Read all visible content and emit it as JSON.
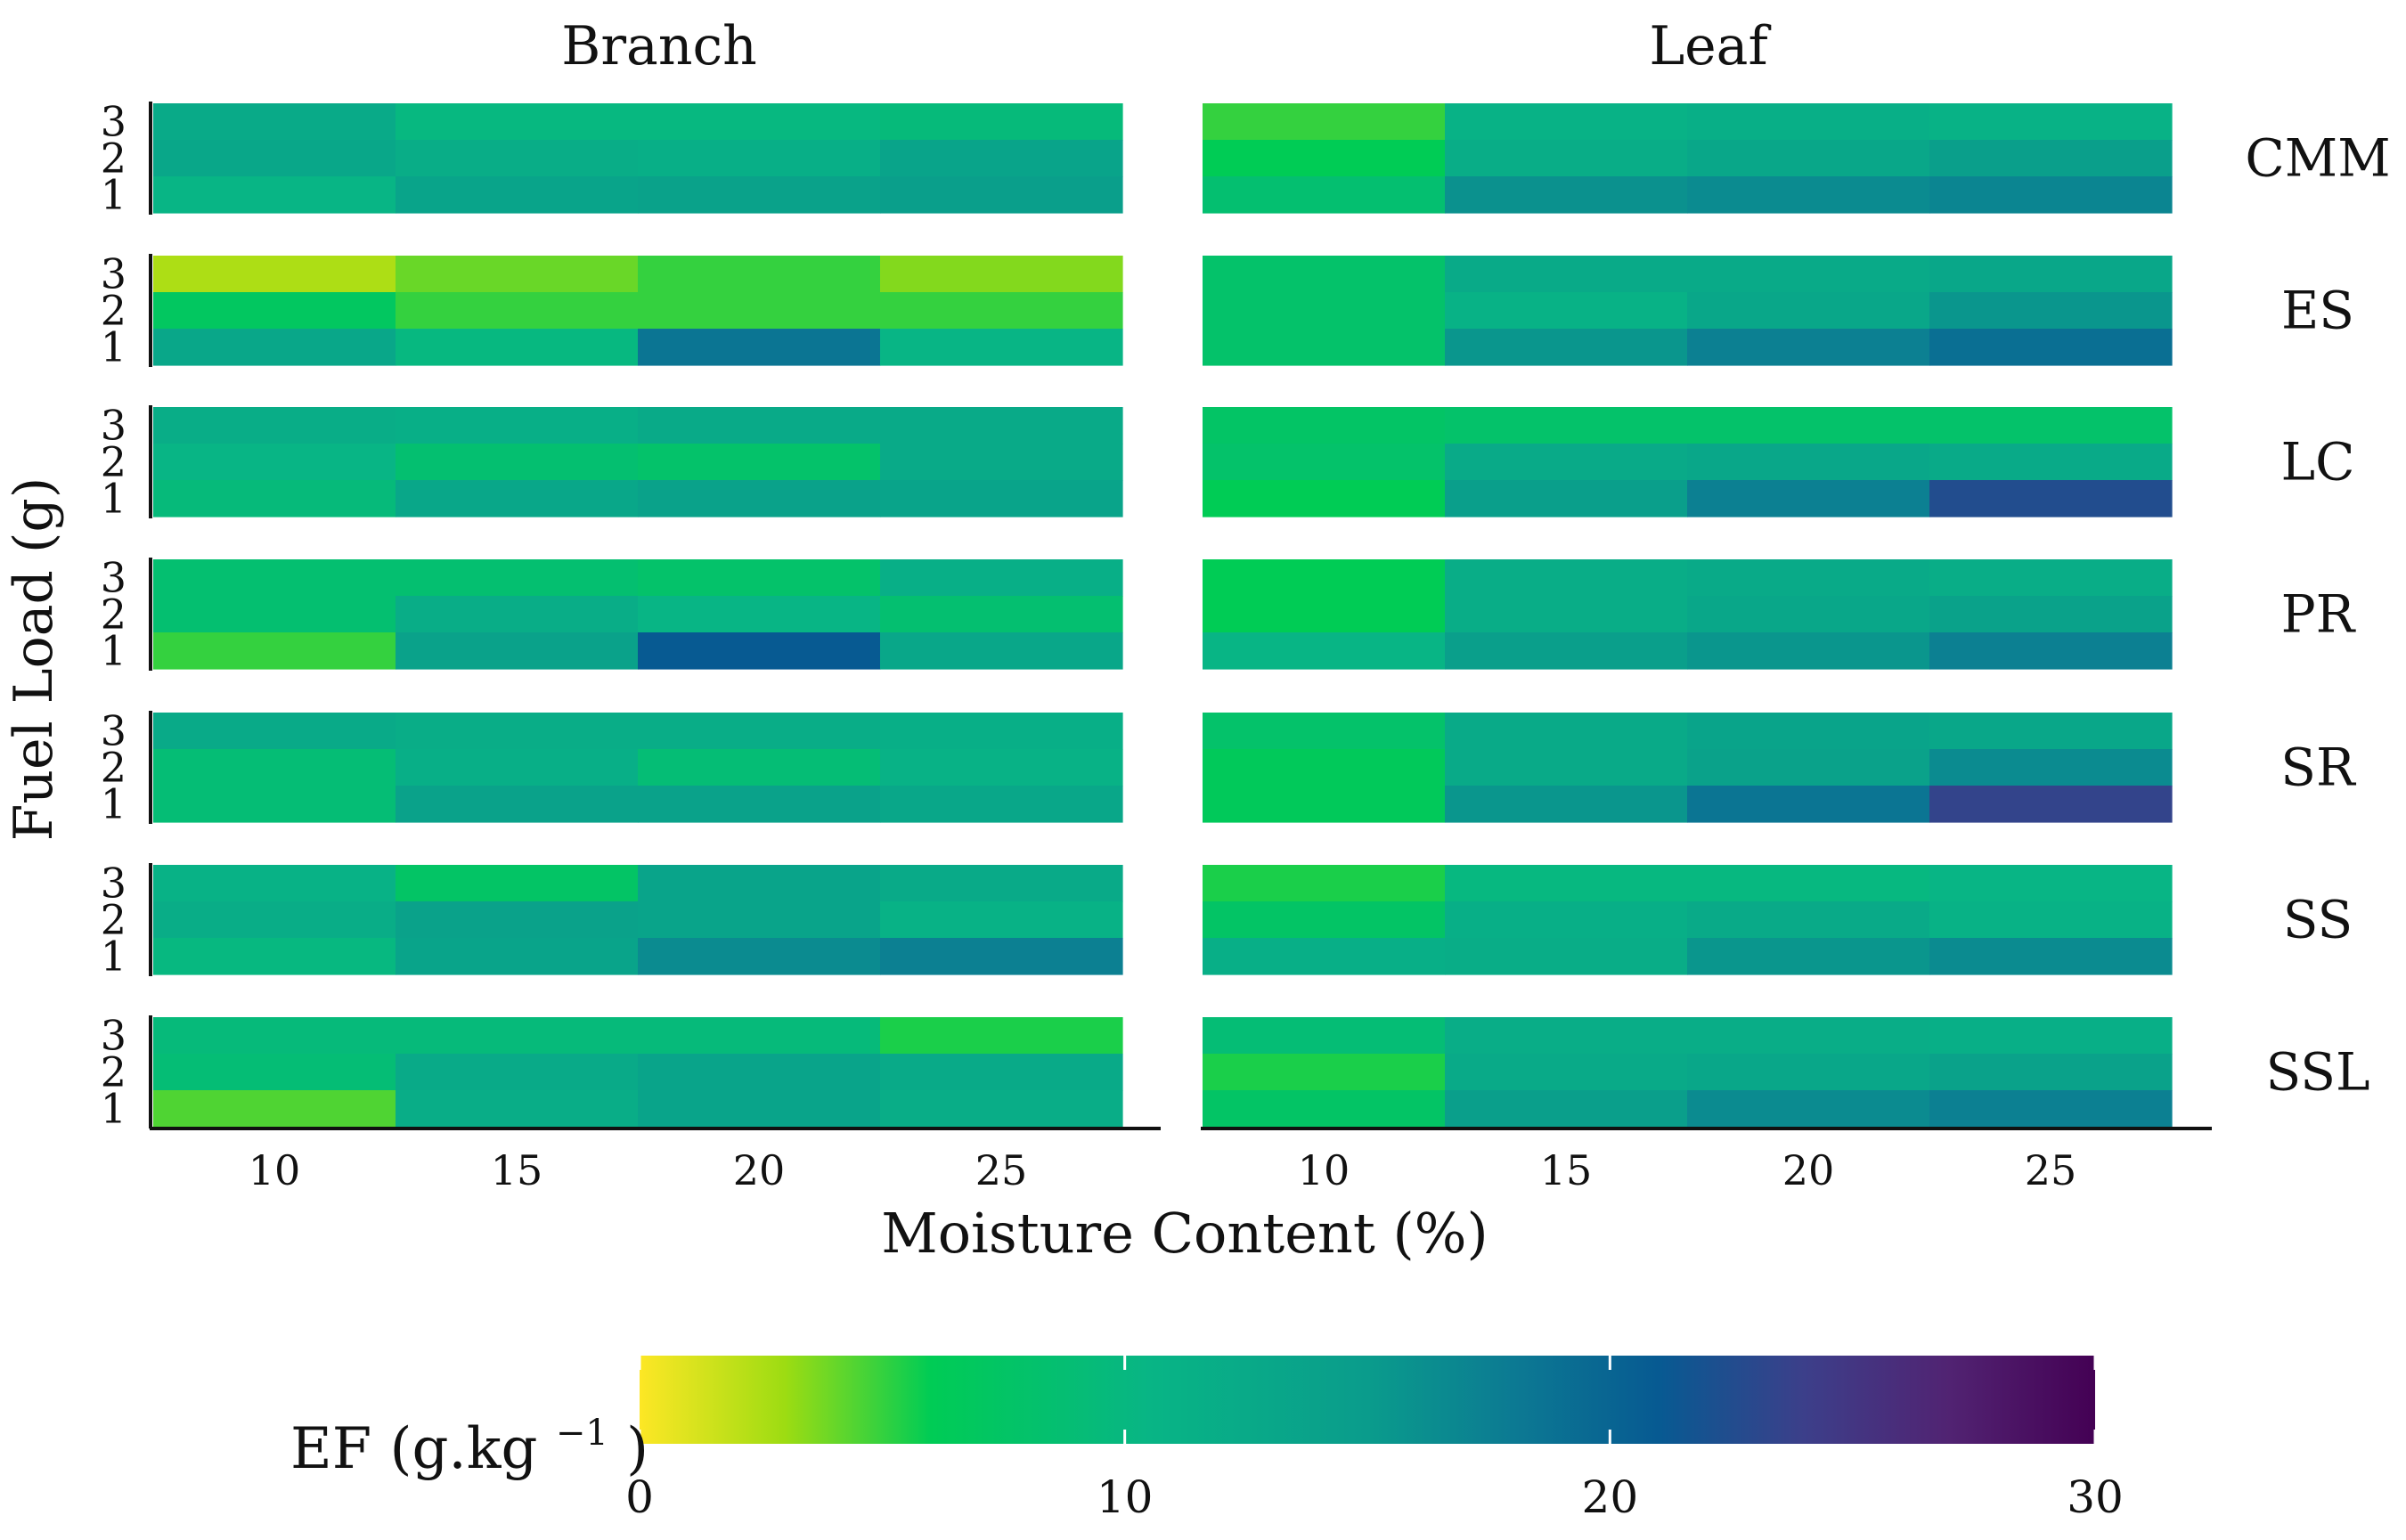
{
  "chart_data": {
    "type": "heatmap",
    "panels": [
      "Branch",
      "Leaf"
    ],
    "species": [
      "CMM",
      "ES",
      "LC",
      "PR",
      "SR",
      "SS",
      "SSL"
    ],
    "x": [
      10,
      15,
      20,
      25
    ],
    "x_ticks": [
      "10",
      "15",
      "20",
      "25"
    ],
    "y": [
      1,
      2,
      3
    ],
    "y_ticks": [
      "3",
      "2",
      "1"
    ],
    "xlabel": "Moisture Content (%)",
    "ylabel": "Fuel Load (g)",
    "colorbar": {
      "label": "EF (g.kg",
      "label_sup": "−1",
      "label_close": ")",
      "range": [
        0,
        30
      ],
      "ticks": [
        0,
        10,
        20,
        30
      ],
      "tick_labels": [
        "0",
        "10",
        "20",
        "30"
      ],
      "colormap": "viridis (reversed)"
    },
    "note": "values[panel][species] = rows for fuel load 3, 2, 1; columns for moisture 10, 15, 20, 25",
    "values": {
      "Branch": {
        "CMM": [
          [
            12.5,
            10.0,
            10.0,
            9.5
          ],
          [
            13.0,
            12.0,
            11.5,
            13.5
          ],
          [
            10.5,
            13.5,
            14.0,
            14.5
          ]
        ],
        "ES": [
          [
            2.5,
            4.0,
            5.0,
            3.5
          ],
          [
            7.0,
            5.0,
            5.0,
            5.0
          ],
          [
            13.0,
            10.0,
            18.5,
            10.5
          ]
        ],
        "LC": [
          [
            12.0,
            11.5,
            12.5,
            12.5
          ],
          [
            10.5,
            8.5,
            8.0,
            12.5
          ],
          [
            9.5,
            13.0,
            14.0,
            13.5
          ]
        ],
        "PR": [
          [
            8.5,
            8.5,
            8.0,
            11.5
          ],
          [
            8.5,
            12.0,
            10.5,
            8.5
          ],
          [
            5.0,
            14.0,
            21.0,
            13.0
          ]
        ],
        "SR": [
          [
            12.5,
            12.0,
            12.0,
            11.5
          ],
          [
            9.0,
            11.5,
            9.0,
            11.0
          ],
          [
            9.0,
            14.0,
            14.0,
            13.0
          ]
        ],
        "SS": [
          [
            11.0,
            7.5,
            13.5,
            12.5
          ],
          [
            12.0,
            14.0,
            13.5,
            11.0
          ],
          [
            10.0,
            13.5,
            16.5,
            17.5
          ]
        ],
        "SSL": [
          [
            9.5,
            9.5,
            9.5,
            5.5
          ],
          [
            9.0,
            12.5,
            13.5,
            12.5
          ],
          [
            4.5,
            12.0,
            13.5,
            12.0
          ]
        ]
      },
      "Leaf": {
        "CMM": [
          [
            5.0,
            11.0,
            11.5,
            11.0
          ],
          [
            6.0,
            12.0,
            13.0,
            14.5
          ],
          [
            8.5,
            16.0,
            16.5,
            17.0
          ]
        ],
        "ES": [
          [
            8.0,
            12.5,
            12.5,
            13.0
          ],
          [
            8.0,
            11.0,
            13.0,
            15.5
          ],
          [
            8.0,
            15.5,
            17.5,
            19.0
          ]
        ],
        "LC": [
          [
            7.5,
            8.0,
            8.0,
            8.0
          ],
          [
            8.0,
            12.5,
            13.0,
            12.5
          ],
          [
            6.0,
            14.5,
            17.5,
            22.5
          ]
        ],
        "PR": [
          [
            6.0,
            12.0,
            12.5,
            12.0
          ],
          [
            6.0,
            12.0,
            13.0,
            14.0
          ],
          [
            10.5,
            14.5,
            15.5,
            17.5
          ]
        ],
        "SR": [
          [
            8.0,
            12.5,
            13.5,
            13.0
          ],
          [
            6.5,
            12.5,
            14.0,
            16.5
          ],
          [
            6.5,
            15.5,
            18.5,
            23.5
          ]
        ],
        "SS": [
          [
            5.5,
            10.0,
            10.0,
            10.5
          ],
          [
            7.5,
            11.5,
            12.5,
            11.0
          ],
          [
            11.5,
            12.0,
            15.5,
            16.5
          ]
        ],
        "SSL": [
          [
            9.0,
            12.0,
            12.0,
            11.5
          ],
          [
            5.5,
            12.5,
            13.0,
            14.0
          ],
          [
            7.5,
            14.5,
            16.5,
            17.5
          ]
        ]
      }
    }
  }
}
